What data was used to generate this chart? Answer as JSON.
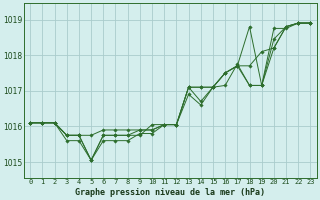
{
  "title": "Graphe pression niveau de la mer (hPa)",
  "background_color": "#d4eeed",
  "grid_color": "#aacccc",
  "line_color": "#2d6e2d",
  "spine_color": "#2d6e2d",
  "xlim": [
    -0.5,
    23.5
  ],
  "ylim": [
    1014.55,
    1019.45
  ],
  "yticks": [
    1015,
    1016,
    1017,
    1018,
    1019
  ],
  "xtick_labels": [
    "0",
    "1",
    "2",
    "3",
    "4",
    "5",
    "6",
    "7",
    "8",
    "9",
    "10",
    "11",
    "12",
    "13",
    "14",
    "15",
    "16",
    "17",
    "18",
    "19",
    "20",
    "21",
    "22",
    "23"
  ],
  "series": [
    [
      1016.1,
      1016.1,
      1016.1,
      1015.75,
      1015.75,
      1015.05,
      1015.75,
      1015.75,
      1015.75,
      1015.75,
      1016.05,
      1016.05,
      1016.05,
      1017.1,
      1016.7,
      1017.1,
      1017.15,
      1017.75,
      1017.15,
      1017.15,
      1018.75,
      1018.75,
      1018.9,
      1018.9
    ],
    [
      1016.1,
      1016.1,
      1016.1,
      1015.75,
      1015.75,
      1015.75,
      1015.9,
      1015.9,
      1015.9,
      1015.9,
      1015.9,
      1016.05,
      1016.05,
      1017.1,
      1017.1,
      1017.1,
      1017.5,
      1017.7,
      1017.7,
      1018.1,
      1018.2,
      1018.8,
      1018.9,
      1018.9
    ],
    [
      1016.1,
      1016.1,
      1016.1,
      1015.75,
      1015.75,
      1015.05,
      1015.75,
      1015.75,
      1015.75,
      1015.9,
      1015.9,
      1016.05,
      1016.05,
      1017.1,
      1017.1,
      1017.1,
      1017.5,
      1017.7,
      1018.8,
      1017.15,
      1018.45,
      1018.8,
      1018.9,
      1018.9
    ],
    [
      1016.1,
      1016.1,
      1016.1,
      1015.6,
      1015.6,
      1015.05,
      1015.6,
      1015.6,
      1015.6,
      1015.8,
      1015.8,
      1016.05,
      1016.05,
      1016.9,
      1016.6,
      1017.1,
      1017.5,
      1017.7,
      1017.15,
      1017.15,
      1018.2,
      1018.8,
      1018.9,
      1018.9
    ]
  ]
}
